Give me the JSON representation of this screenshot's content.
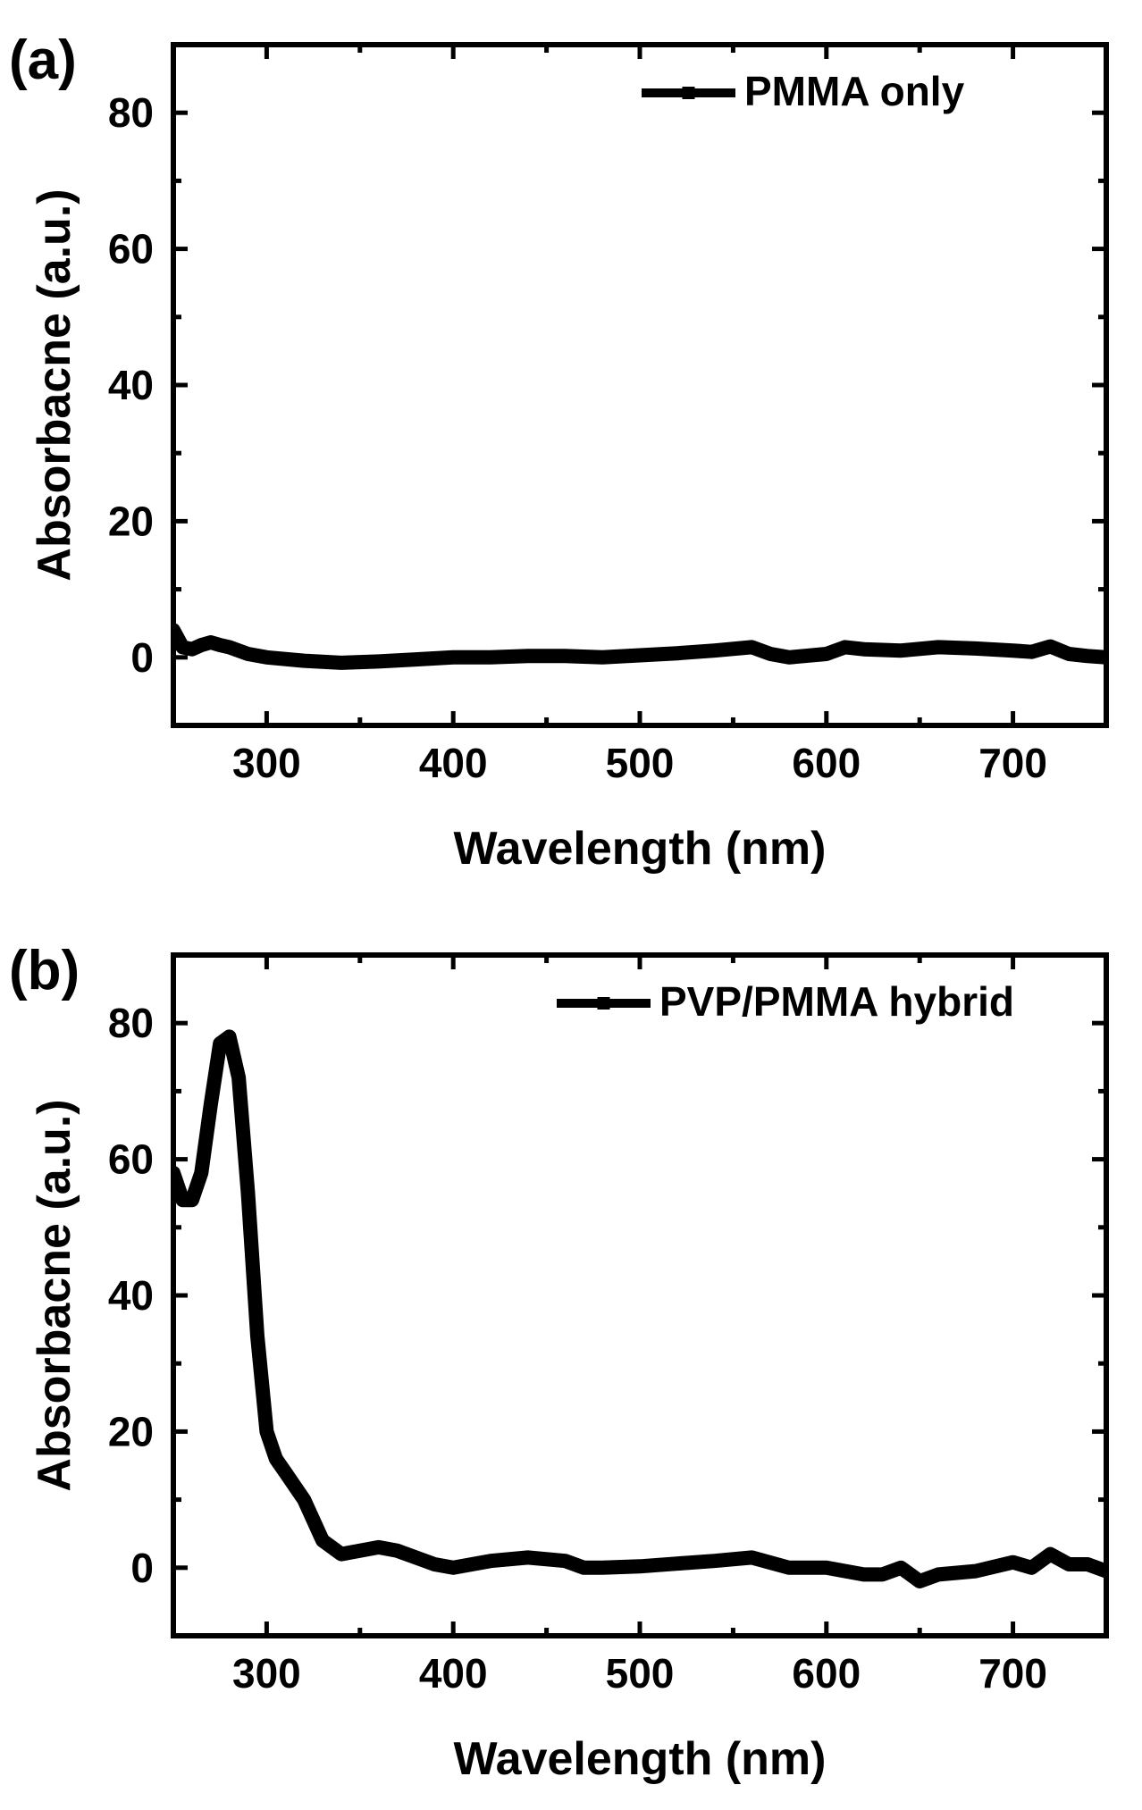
{
  "chart_data": [
    {
      "type": "line",
      "panel_label": "(a)",
      "xlabel": "Wavelength (nm)",
      "ylabel": "Absorbacne (a.u.)",
      "xlim": [
        250,
        750
      ],
      "ylim": [
        -10,
        90
      ],
      "xticks": [
        300,
        400,
        500,
        600,
        700
      ],
      "yticks": [
        0,
        20,
        40,
        60,
        80
      ],
      "grid": false,
      "legend_position": "top-right",
      "series": [
        {
          "name": "PMMA only",
          "color": "#000000",
          "x": [
            250,
            255,
            260,
            265,
            270,
            275,
            280,
            290,
            300,
            320,
            340,
            360,
            380,
            400,
            420,
            440,
            460,
            480,
            500,
            520,
            540,
            560,
            570,
            580,
            600,
            610,
            620,
            640,
            660,
            680,
            700,
            710,
            720,
            730,
            740,
            750
          ],
          "y": [
            4,
            1.5,
            1.2,
            1.8,
            2.2,
            1.8,
            1.5,
            0.5,
            0,
            -0.5,
            -0.8,
            -0.6,
            -0.3,
            0,
            0,
            0.2,
            0.2,
            0,
            0.3,
            0.6,
            1,
            1.5,
            0.5,
            0,
            0.5,
            1.5,
            1.2,
            1,
            1.5,
            1.3,
            1,
            0.8,
            1.6,
            0.5,
            0.2,
            0
          ]
        }
      ]
    },
    {
      "type": "line",
      "panel_label": "(b)",
      "xlabel": "Wavelength (nm)",
      "ylabel": "Absorbacne (a.u.)",
      "xlim": [
        250,
        750
      ],
      "ylim": [
        -10,
        90
      ],
      "xticks": [
        300,
        400,
        500,
        600,
        700
      ],
      "yticks": [
        0,
        20,
        40,
        60,
        80
      ],
      "grid": false,
      "legend_position": "top-right",
      "series": [
        {
          "name": "PVP/PMMA hybrid",
          "color": "#000000",
          "x": [
            250,
            255,
            260,
            265,
            270,
            275,
            280,
            285,
            290,
            295,
            300,
            305,
            310,
            320,
            330,
            340,
            350,
            360,
            370,
            380,
            390,
            400,
            410,
            420,
            440,
            460,
            470,
            480,
            500,
            520,
            540,
            560,
            580,
            600,
            620,
            630,
            640,
            650,
            660,
            680,
            700,
            710,
            720,
            730,
            740,
            750
          ],
          "y": [
            58,
            54,
            54,
            58,
            68,
            77,
            78,
            72,
            55,
            34,
            20,
            16,
            14,
            10,
            4,
            2,
            2.5,
            3,
            2.5,
            1.5,
            0.5,
            0,
            0.5,
            1,
            1.5,
            1,
            0,
            0,
            0.2,
            0.6,
            1,
            1.5,
            0,
            0,
            -1,
            -1,
            0,
            -2,
            -1,
            -0.5,
            0.8,
            0,
            2,
            0.5,
            0.5,
            -0.5
          ]
        }
      ]
    }
  ]
}
